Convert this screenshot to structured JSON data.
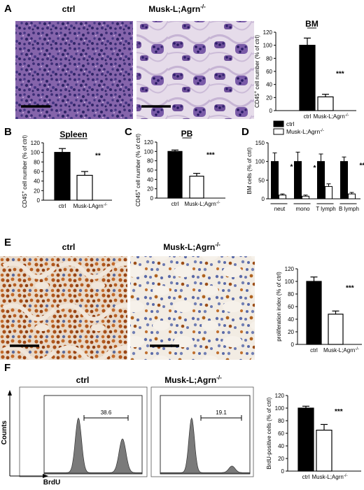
{
  "panels": {
    "A": {
      "label": "A",
      "images": [
        {
          "title": "ctrl",
          "stain": "he"
        },
        {
          "title": "Musk-L;Agrn",
          "sup": "-/-",
          "stain": "he"
        }
      ]
    },
    "E": {
      "label": "E",
      "images": [
        {
          "title": "ctrl",
          "stain": "ihc-high"
        },
        {
          "title": "Musk-L;Agrn",
          "sup": "-/-",
          "stain": "ihc-low"
        }
      ]
    },
    "F": {
      "label": "F",
      "flow": [
        {
          "title": "ctrl",
          "gate_value": "38.6",
          "peaks": [
            0.35,
            0.8
          ],
          "heights": [
            1.0,
            0.62
          ]
        },
        {
          "title": "Musk-L;Agrn",
          "sup": "-/-",
          "gate_value": "19.1",
          "peaks": [
            0.35,
            0.8
          ],
          "heights": [
            1.0,
            0.12
          ]
        }
      ],
      "y_axis_label": "Counts",
      "x_axis_label": "BrdU"
    },
    "B": {
      "label": "B"
    },
    "C": {
      "label": "C"
    },
    "D": {
      "label": "D"
    }
  },
  "chart_data": [
    {
      "id": "A",
      "type": "bar",
      "title": "BM",
      "title_underline": true,
      "ylabel": "CD45+ cell number (% of ctrl)",
      "ylim": [
        0,
        120
      ],
      "yticks": [
        0,
        20,
        40,
        60,
        80,
        100,
        120
      ],
      "categories": [
        "ctrl",
        "Musk-L;Agrn-/-"
      ],
      "values": [
        100,
        21
      ],
      "errors": [
        11,
        4
      ],
      "significance": "***"
    },
    {
      "id": "B",
      "type": "bar",
      "title": "Spleen",
      "title_underline": true,
      "ylabel": "CD45+ cell number (% of ctrl)",
      "ylim": [
        0,
        120
      ],
      "yticks": [
        0,
        20,
        40,
        60,
        80,
        100,
        120
      ],
      "categories": [
        "ctrl",
        "Musk-LAgrn-/-"
      ],
      "values": [
        100,
        52
      ],
      "errors": [
        8,
        8
      ],
      "significance": "**"
    },
    {
      "id": "C",
      "type": "bar",
      "title": "PB",
      "title_underline": true,
      "ylabel": "CD45+ cell number (% of ctrl)",
      "ylim": [
        0,
        120
      ],
      "yticks": [
        0,
        20,
        40,
        60,
        80,
        100,
        120
      ],
      "categories": [
        "ctrl",
        "Musk-L;Agrn-/-"
      ],
      "values": [
        100,
        47
      ],
      "errors": [
        3,
        6
      ],
      "significance": "***"
    },
    {
      "id": "D",
      "type": "bar",
      "ylabel": "BM cells (% of ctrl)",
      "ylim": [
        0,
        150
      ],
      "yticks": [
        0,
        50,
        100,
        150
      ],
      "categories": [
        "neut",
        "mono",
        "T lymph",
        "B lymph"
      ],
      "series": [
        {
          "name": "ctrl",
          "values": [
            100,
            100,
            100,
            100
          ],
          "errors": [
            23,
            25,
            20,
            12
          ]
        },
        {
          "name": "Musk-L;Agrn-/-",
          "values": [
            10,
            7,
            33,
            13
          ],
          "errors": [
            3,
            3,
            7,
            4
          ]
        }
      ],
      "significance": [
        "*",
        "*",
        "",
        "**"
      ],
      "legend_position": "top-right"
    },
    {
      "id": "E",
      "type": "bar",
      "ylabel": "proliferation index (% of ctrl)",
      "ylim": [
        0,
        120
      ],
      "yticks": [
        0,
        20,
        40,
        60,
        80,
        100,
        120
      ],
      "categories": [
        "ctrl",
        "Musk-L;Agrn-/-"
      ],
      "values": [
        100,
        48
      ],
      "errors": [
        7,
        5
      ],
      "significance": "***"
    },
    {
      "id": "F",
      "type": "bar",
      "ylabel": "BrdU-positive cells (% of ctrl)",
      "ylim": [
        0,
        120
      ],
      "yticks": [
        0,
        20,
        40,
        60,
        80,
        100,
        120
      ],
      "categories": [
        "ctrl",
        "Musk-L;Agrn-/-"
      ],
      "values": [
        100,
        65
      ],
      "errors": [
        3,
        9
      ],
      "significance": "***"
    }
  ]
}
